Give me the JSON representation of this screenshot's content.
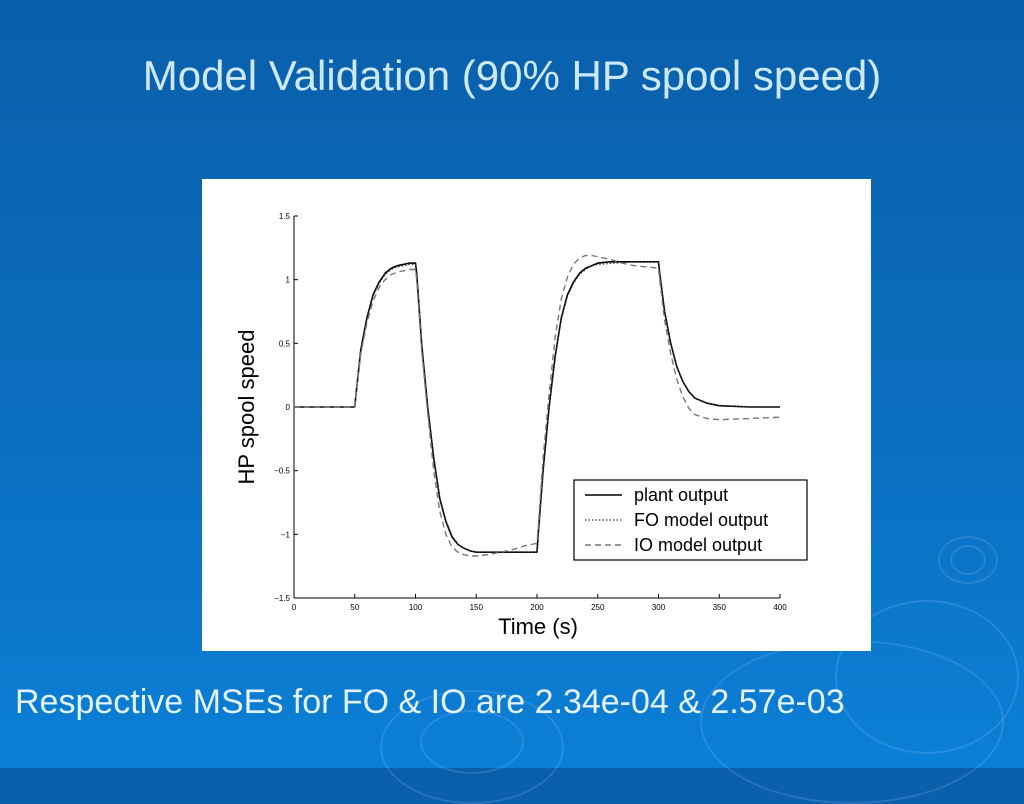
{
  "slide": {
    "title": "Model Validation (90% HP spool speed)",
    "caption": "Respective MSEs for FO & IO are 2.34e-04 & 2.57e-03"
  },
  "colors": {
    "background": "#0b6fc0",
    "title": "#cde9ff",
    "caption": "#e3f2ff",
    "plot_line": "#000000",
    "io_line": "#777777"
  },
  "chart_data": {
    "type": "line",
    "xlabel": "Time (s)",
    "ylabel": "HP spool speed",
    "xlim": [
      0,
      400
    ],
    "ylim": [
      -1.5,
      1.5
    ],
    "x_ticks": [
      0,
      50,
      100,
      150,
      200,
      250,
      300,
      350,
      400
    ],
    "y_ticks": [
      1.5,
      1,
      0.5,
      0,
      -0.5,
      -1,
      -1.5
    ],
    "y_tick_labels": [
      "1.5",
      "1",
      "0.5",
      "0",
      "−0.5",
      "−1",
      "−1.5"
    ],
    "grid": false,
    "legend_position": "lower-right",
    "series": [
      {
        "name": "plant output",
        "style": "solid",
        "points": [
          [
            0,
            0
          ],
          [
            50,
            0
          ],
          [
            51,
            0.1
          ],
          [
            55,
            0.45
          ],
          [
            60,
            0.7
          ],
          [
            65,
            0.88
          ],
          [
            70,
            0.98
          ],
          [
            75,
            1.05
          ],
          [
            80,
            1.09
          ],
          [
            85,
            1.11
          ],
          [
            90,
            1.12
          ],
          [
            95,
            1.13
          ],
          [
            100,
            1.13
          ],
          [
            101,
            1.05
          ],
          [
            105,
            0.5
          ],
          [
            110,
            0
          ],
          [
            115,
            -0.4
          ],
          [
            120,
            -0.72
          ],
          [
            125,
            -0.9
          ],
          [
            130,
            -1.02
          ],
          [
            135,
            -1.08
          ],
          [
            140,
            -1.11
          ],
          [
            145,
            -1.13
          ],
          [
            150,
            -1.14
          ],
          [
            160,
            -1.14
          ],
          [
            180,
            -1.14
          ],
          [
            200,
            -1.14
          ],
          [
            201,
            -1.0
          ],
          [
            205,
            -0.5
          ],
          [
            210,
            0
          ],
          [
            215,
            0.4
          ],
          [
            220,
            0.7
          ],
          [
            225,
            0.88
          ],
          [
            230,
            0.98
          ],
          [
            235,
            1.05
          ],
          [
            240,
            1.09
          ],
          [
            245,
            1.11
          ],
          [
            250,
            1.13
          ],
          [
            260,
            1.14
          ],
          [
            280,
            1.14
          ],
          [
            300,
            1.14
          ],
          [
            301,
            1.05
          ],
          [
            305,
            0.75
          ],
          [
            310,
            0.5
          ],
          [
            315,
            0.32
          ],
          [
            320,
            0.2
          ],
          [
            325,
            0.12
          ],
          [
            330,
            0.07
          ],
          [
            340,
            0.03
          ],
          [
            350,
            0.01
          ],
          [
            375,
            0
          ],
          [
            400,
            0
          ]
        ]
      },
      {
        "name": "FO model output",
        "style": "dotted",
        "points": [
          [
            0,
            0
          ],
          [
            50,
            0
          ],
          [
            51,
            0.1
          ],
          [
            55,
            0.44
          ],
          [
            60,
            0.69
          ],
          [
            65,
            0.87
          ],
          [
            70,
            0.97
          ],
          [
            75,
            1.04
          ],
          [
            80,
            1.08
          ],
          [
            85,
            1.1
          ],
          [
            90,
            1.11
          ],
          [
            95,
            1.12
          ],
          [
            100,
            1.12
          ],
          [
            101,
            1.04
          ],
          [
            105,
            0.5
          ],
          [
            110,
            0
          ],
          [
            115,
            -0.4
          ],
          [
            120,
            -0.71
          ],
          [
            125,
            -0.89
          ],
          [
            130,
            -1.01
          ],
          [
            135,
            -1.08
          ],
          [
            140,
            -1.11
          ],
          [
            145,
            -1.13
          ],
          [
            150,
            -1.14
          ],
          [
            180,
            -1.14
          ],
          [
            200,
            -1.14
          ],
          [
            201,
            -1.0
          ],
          [
            205,
            -0.5
          ],
          [
            210,
            0
          ],
          [
            215,
            0.4
          ],
          [
            220,
            0.69
          ],
          [
            225,
            0.87
          ],
          [
            230,
            0.97
          ],
          [
            235,
            1.04
          ],
          [
            240,
            1.08
          ],
          [
            245,
            1.11
          ],
          [
            250,
            1.12
          ],
          [
            280,
            1.14
          ],
          [
            300,
            1.14
          ],
          [
            301,
            1.05
          ],
          [
            305,
            0.75
          ],
          [
            310,
            0.5
          ],
          [
            315,
            0.32
          ],
          [
            320,
            0.2
          ],
          [
            325,
            0.12
          ],
          [
            330,
            0.07
          ],
          [
            340,
            0.03
          ],
          [
            350,
            0.01
          ],
          [
            375,
            0
          ],
          [
            400,
            0
          ]
        ]
      },
      {
        "name": "IO model output",
        "style": "dashed",
        "points": [
          [
            0,
            0
          ],
          [
            50,
            0
          ],
          [
            51,
            0.1
          ],
          [
            55,
            0.42
          ],
          [
            60,
            0.66
          ],
          [
            65,
            0.83
          ],
          [
            70,
            0.94
          ],
          [
            75,
            1.0
          ],
          [
            80,
            1.04
          ],
          [
            85,
            1.06
          ],
          [
            90,
            1.07
          ],
          [
            95,
            1.08
          ],
          [
            100,
            1.08
          ],
          [
            101,
            1.0
          ],
          [
            105,
            0.45
          ],
          [
            110,
            -0.05
          ],
          [
            115,
            -0.5
          ],
          [
            120,
            -0.82
          ],
          [
            125,
            -1.0
          ],
          [
            130,
            -1.1
          ],
          [
            135,
            -1.14
          ],
          [
            140,
            -1.16
          ],
          [
            145,
            -1.17
          ],
          [
            150,
            -1.17
          ],
          [
            160,
            -1.16
          ],
          [
            170,
            -1.14
          ],
          [
            180,
            -1.12
          ],
          [
            190,
            -1.09
          ],
          [
            200,
            -1.07
          ],
          [
            201,
            -0.95
          ],
          [
            205,
            -0.4
          ],
          [
            210,
            0.1
          ],
          [
            215,
            0.55
          ],
          [
            220,
            0.85
          ],
          [
            225,
            1.02
          ],
          [
            230,
            1.12
          ],
          [
            235,
            1.17
          ],
          [
            240,
            1.19
          ],
          [
            245,
            1.19
          ],
          [
            250,
            1.18
          ],
          [
            260,
            1.16
          ],
          [
            270,
            1.13
          ],
          [
            280,
            1.11
          ],
          [
            290,
            1.1
          ],
          [
            300,
            1.09
          ],
          [
            301,
            1.0
          ],
          [
            305,
            0.68
          ],
          [
            310,
            0.42
          ],
          [
            315,
            0.22
          ],
          [
            320,
            0.08
          ],
          [
            325,
            -0.01
          ],
          [
            330,
            -0.06
          ],
          [
            340,
            -0.09
          ],
          [
            350,
            -0.1
          ],
          [
            375,
            -0.09
          ],
          [
            400,
            -0.08
          ]
        ]
      }
    ]
  }
}
